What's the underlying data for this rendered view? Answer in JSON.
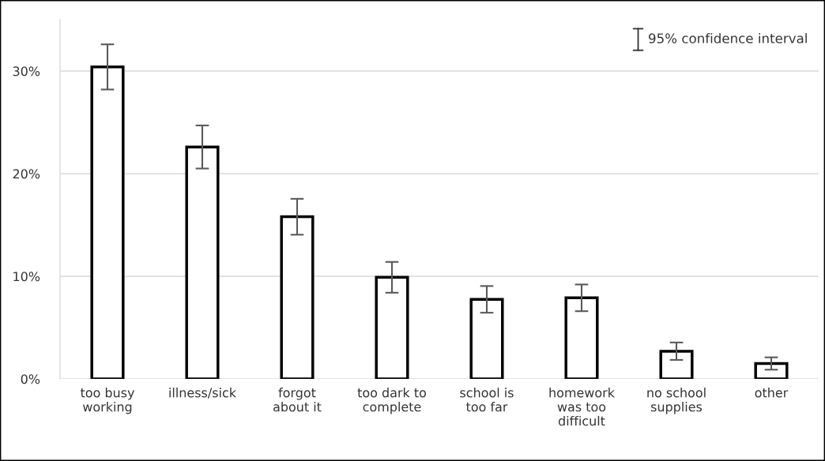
{
  "chart_data": {
    "type": "bar",
    "categories": [
      "too busy\nworking",
      "illness/sick",
      "forgot\nabout it",
      "too dark to\ncomplete",
      "school is\ntoo far",
      "homework\nwas too\ndifficult",
      "no school\nsupplies",
      "other"
    ],
    "values": [
      30.4,
      22.6,
      15.8,
      9.9,
      7.75,
      7.9,
      2.7,
      1.5
    ],
    "errors": [
      2.2,
      2.1,
      1.75,
      1.5,
      1.3,
      1.3,
      0.85,
      0.6
    ],
    "color": "#ffffff",
    "ylim": [
      0,
      35
    ],
    "yticks": [
      {
        "value": 0,
        "label": "0%"
      },
      {
        "value": 10,
        "label": "10%"
      },
      {
        "value": 20,
        "label": "20%"
      },
      {
        "value": 30,
        "label": "30%"
      }
    ],
    "grid": "y",
    "annotations": [
      "95% confidence interval"
    ]
  }
}
